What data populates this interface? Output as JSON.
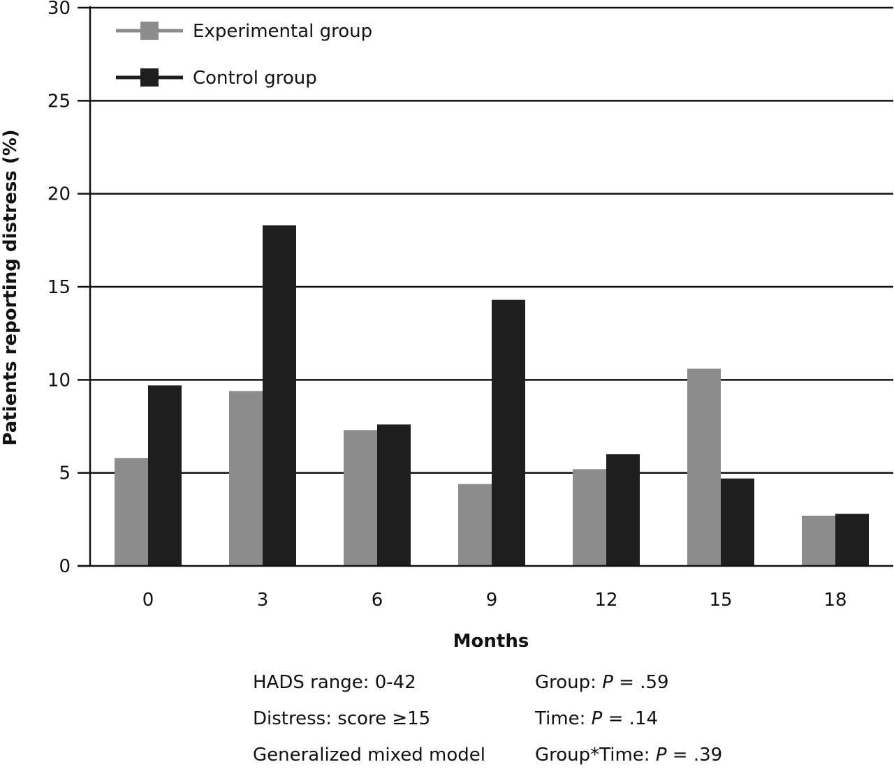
{
  "chart_data": {
    "type": "bar",
    "title": "",
    "xlabel": "Months",
    "ylabel": "Patients reporting distress (%)",
    "ylim": [
      0,
      30
    ],
    "yticks": [
      0,
      5,
      10,
      15,
      20,
      25,
      30
    ],
    "grid": true,
    "legend_position": "top-left",
    "categories": [
      "0",
      "3",
      "6",
      "9",
      "12",
      "15",
      "18"
    ],
    "series": [
      {
        "name": "Experimental group",
        "color": "#8c8c8c",
        "values": [
          5.8,
          9.4,
          7.3,
          4.4,
          5.2,
          10.6,
          2.7
        ]
      },
      {
        "name": "Control group",
        "color": "#1e1e1e",
        "values": [
          9.7,
          18.3,
          7.6,
          14.3,
          6.0,
          4.7,
          2.8
        ]
      }
    ]
  },
  "notes": {
    "hads_range": "HADS range: 0-42",
    "distress": "Distress: score ≥15",
    "model": "Generalized mixed model",
    "group_label": "Group: ",
    "group_p": "P",
    "group_value": " = .59",
    "time_label": "Time: ",
    "time_p": "P",
    "time_value": " = .14",
    "interaction_label": "Group*Time: ",
    "interaction_p": "P",
    "interaction_value": " = .39"
  }
}
